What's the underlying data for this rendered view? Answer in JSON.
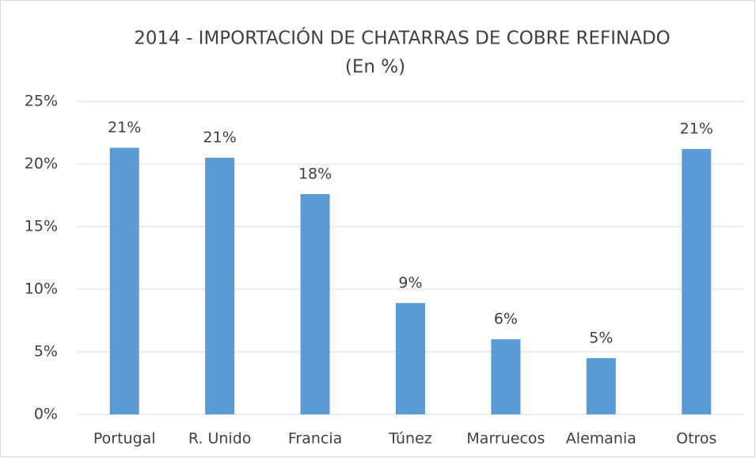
{
  "chart_data": {
    "type": "bar",
    "title": "2014 - IMPORTACIÓN DE CHATARRAS DE COBRE REFINADO",
    "subtitle": "(En %)",
    "categories": [
      "Portugal",
      "R. Unido",
      "Francia",
      "Túnez",
      "Marruecos",
      "Alemania",
      "Otros"
    ],
    "values": [
      21.3,
      20.5,
      17.6,
      8.9,
      6.0,
      4.5,
      21.2
    ],
    "value_labels": [
      "21%",
      "21%",
      "18%",
      "9%",
      "6%",
      "5%",
      "21%"
    ],
    "color": "#5b9bd5",
    "ylim": [
      0,
      25
    ],
    "yticks": [
      {
        "value": 0,
        "label": "0%"
      },
      {
        "value": 5,
        "label": "5%"
      },
      {
        "value": 10,
        "label": "10%"
      },
      {
        "value": 15,
        "label": "15%"
      },
      {
        "value": 20,
        "label": "20%"
      },
      {
        "value": 25,
        "label": "25%"
      }
    ],
    "grid": true
  }
}
